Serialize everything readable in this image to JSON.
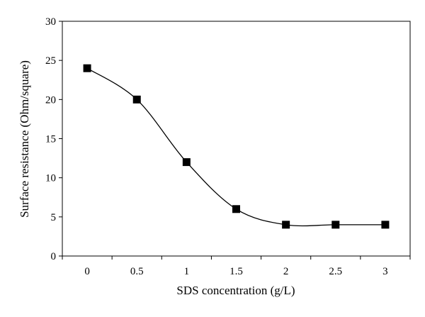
{
  "chart_data": {
    "type": "scatter",
    "title": "",
    "xlabel": "SDS concentration (g/L)",
    "ylabel": "Surface resistance (Ohm/square)",
    "x_categories": [
      "0",
      "0.5",
      "1",
      "1.5",
      "2",
      "2.5",
      "3"
    ],
    "ylim": [
      0,
      30
    ],
    "yticks": [
      0,
      5,
      10,
      15,
      20,
      25,
      30
    ],
    "grid": false,
    "legend": "none",
    "marker": "square",
    "line": "smooth",
    "colors": {
      "marker": "#000000",
      "line": "#000000",
      "axis": "#000000"
    },
    "series": [
      {
        "x": [
          "0",
          "0.5",
          "1",
          "1.5",
          "2",
          "2.5",
          "3"
        ],
        "y": [
          24,
          20,
          12,
          6,
          4,
          4,
          4
        ]
      }
    ]
  }
}
